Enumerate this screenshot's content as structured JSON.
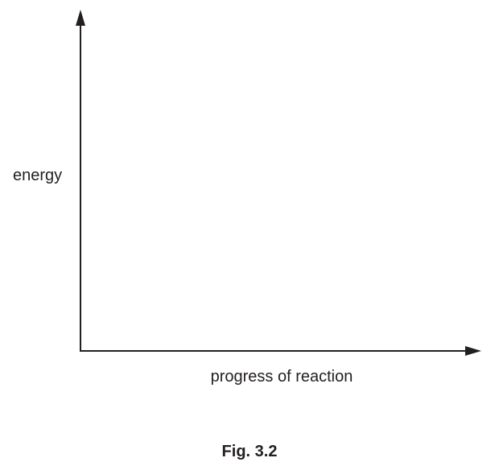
{
  "diagram": {
    "y_axis_label": "energy",
    "x_axis_label": "progress of reaction",
    "caption": "Fig. 3.2"
  }
}
